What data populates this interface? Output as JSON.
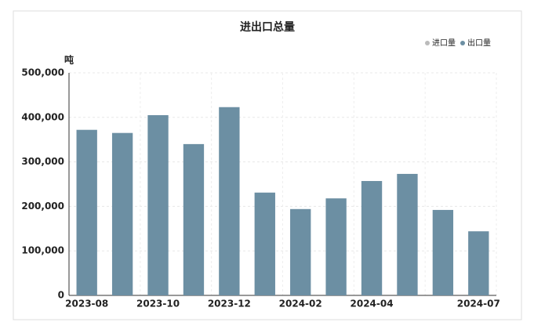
{
  "chart_data": {
    "type": "bar",
    "title": "进出口总量",
    "y_label": "吨",
    "categories": [
      "2023-08",
      null,
      "2023-10",
      null,
      "2023-12",
      null,
      "2024-02",
      null,
      "2024-04",
      null,
      null,
      "2024-07"
    ],
    "series": [
      {
        "name": "进口量",
        "color": "#bbbbbb",
        "values": [
          null,
          null,
          null,
          null,
          null,
          null,
          null,
          null,
          null,
          null,
          null,
          null
        ]
      },
      {
        "name": "出口量",
        "color": "#6c8fa3",
        "values": [
          372000,
          365000,
          405000,
          340000,
          423000,
          231000,
          194000,
          218000,
          257000,
          273000,
          192000,
          144000
        ]
      }
    ],
    "ylim": [
      0,
      500000
    ],
    "yticks": [
      {
        "value": 0,
        "label": "0"
      },
      {
        "value": 100000,
        "label": "100,000"
      },
      {
        "value": 200000,
        "label": "200,000"
      },
      {
        "value": 300000,
        "label": "300,000"
      },
      {
        "value": 400000,
        "label": "400,000"
      },
      {
        "value": 500000,
        "label": "500,000"
      }
    ],
    "grid": true
  }
}
